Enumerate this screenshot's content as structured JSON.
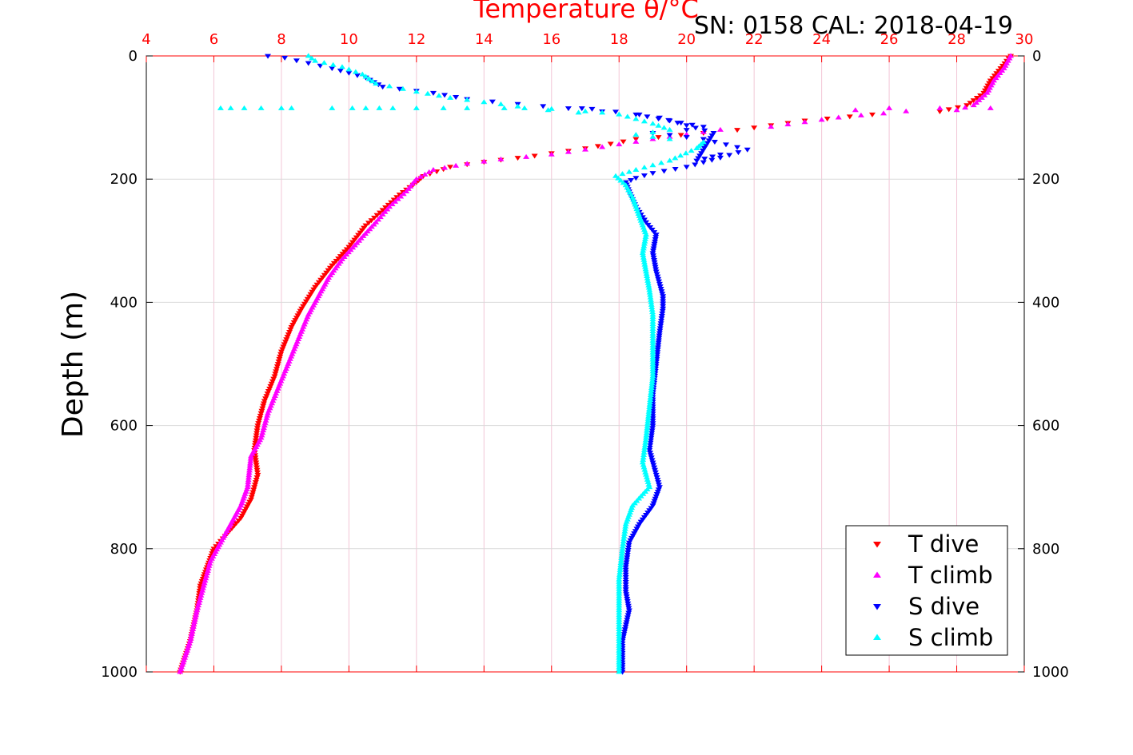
{
  "chart_data": {
    "type": "scatter",
    "title": "Temperature θ/°C",
    "annotation": "SN: 0158  CAL: 2018-04-19",
    "ylabel": "Depth (m)",
    "xlim": [
      4,
      30
    ],
    "ylim": [
      0,
      1000
    ],
    "y_reversed": true,
    "grid": true,
    "legend_position": "bottom-right",
    "x_ticks": [
      "4",
      "6",
      "8",
      "10",
      "12",
      "14",
      "16",
      "18",
      "20",
      "22",
      "24",
      "26",
      "28",
      "30"
    ],
    "y_ticks": [
      "0",
      "200",
      "400",
      "600",
      "800",
      "1000"
    ],
    "colors": {
      "temp_axis": "#ff0000",
      "grid_x": "#f2c6d6",
      "grid_y": "#d9d9d9",
      "T_dive": "#ff0000",
      "T_climb": "#ff00ff",
      "S_dive": "#0000ff",
      "S_climb": "#00ffff"
    },
    "series": [
      {
        "name": "T dive",
        "marker": "triangle-down",
        "color": "#ff0000",
        "points": [
          [
            29.6,
            0
          ],
          [
            29.3,
            20
          ],
          [
            29.0,
            40
          ],
          [
            28.8,
            60
          ],
          [
            28.3,
            80
          ],
          [
            27.5,
            90
          ],
          [
            25.5,
            95
          ],
          [
            23.5,
            105
          ],
          [
            21.5,
            120
          ],
          [
            20.5,
            125
          ],
          [
            18.5,
            135
          ],
          [
            17.0,
            150
          ],
          [
            15.5,
            162
          ],
          [
            14.0,
            172
          ],
          [
            13.0,
            180
          ],
          [
            12.2,
            195
          ],
          [
            12.0,
            205
          ],
          [
            11.5,
            225
          ],
          [
            11.0,
            250
          ],
          [
            10.5,
            275
          ],
          [
            10.0,
            310
          ],
          [
            9.5,
            340
          ],
          [
            9.0,
            375
          ],
          [
            8.6,
            410
          ],
          [
            8.3,
            440
          ],
          [
            8.0,
            480
          ],
          [
            7.8,
            520
          ],
          [
            7.5,
            560
          ],
          [
            7.3,
            600
          ],
          [
            7.2,
            640
          ],
          [
            7.3,
            680
          ],
          [
            7.1,
            720
          ],
          [
            6.8,
            750
          ],
          [
            6.4,
            775
          ],
          [
            6.0,
            800
          ],
          [
            5.8,
            830
          ],
          [
            5.6,
            860
          ],
          [
            5.5,
            900
          ],
          [
            5.3,
            950
          ],
          [
            5.0,
            1000
          ]
        ]
      },
      {
        "name": "T climb",
        "marker": "triangle-up",
        "color": "#ff00ff",
        "points": [
          [
            29.6,
            0
          ],
          [
            29.4,
            20
          ],
          [
            29.1,
            40
          ],
          [
            28.9,
            60
          ],
          [
            28.5,
            80
          ],
          [
            28.0,
            88
          ],
          [
            26.5,
            90
          ],
          [
            24.5,
            100
          ],
          [
            22.5,
            115
          ],
          [
            21.0,
            120
          ],
          [
            19.0,
            135
          ],
          [
            17.5,
            148
          ],
          [
            16.0,
            160
          ],
          [
            14.5,
            168
          ],
          [
            13.5,
            175
          ],
          [
            12.5,
            185
          ],
          [
            12.0,
            200
          ],
          [
            11.7,
            220
          ],
          [
            11.2,
            245
          ],
          [
            10.8,
            270
          ],
          [
            10.3,
            300
          ],
          [
            9.8,
            330
          ],
          [
            9.4,
            360
          ],
          [
            9.1,
            390
          ],
          [
            8.8,
            420
          ],
          [
            8.5,
            460
          ],
          [
            8.2,
            500
          ],
          [
            7.9,
            540
          ],
          [
            7.6,
            580
          ],
          [
            7.4,
            620
          ],
          [
            7.1,
            650
          ],
          [
            7.0,
            700
          ],
          [
            6.8,
            730
          ],
          [
            6.5,
            760
          ],
          [
            6.2,
            790
          ],
          [
            5.9,
            820
          ],
          [
            5.7,
            860
          ],
          [
            5.5,
            900
          ],
          [
            5.3,
            950
          ],
          [
            5.0,
            1000
          ],
          [
            29.0,
            85
          ],
          [
            27.5,
            85
          ],
          [
            26.0,
            85
          ],
          [
            25.0,
            88
          ]
        ]
      },
      {
        "name": "S dive",
        "marker": "triangle-down",
        "color": "#0000ff",
        "points": [
          [
            7.6,
            0
          ],
          [
            8.1,
            3
          ],
          [
            9.5,
            20
          ],
          [
            10.5,
            35
          ],
          [
            11.0,
            50
          ],
          [
            12.5,
            60
          ],
          [
            13.5,
            70
          ],
          [
            15.0,
            78
          ],
          [
            16.5,
            85
          ],
          [
            17.5,
            90
          ],
          [
            18.5,
            95
          ],
          [
            19.5,
            105
          ],
          [
            20.5,
            115
          ],
          [
            20.0,
            120
          ],
          [
            19.0,
            125
          ],
          [
            20.5,
            135
          ],
          [
            21.5,
            148
          ],
          [
            21.8,
            152
          ],
          [
            21.0,
            165
          ],
          [
            20.0,
            180
          ],
          [
            19.0,
            190
          ],
          [
            18.5,
            198
          ],
          [
            18.2,
            205
          ],
          [
            18.3,
            220
          ],
          [
            18.5,
            245
          ],
          [
            18.8,
            270
          ],
          [
            19.1,
            290
          ],
          [
            19.0,
            320
          ],
          [
            19.1,
            350
          ],
          [
            19.3,
            390
          ],
          [
            19.3,
            410
          ],
          [
            19.2,
            450
          ],
          [
            19.1,
            500
          ],
          [
            19.0,
            550
          ],
          [
            19.0,
            600
          ],
          [
            18.9,
            640
          ],
          [
            19.1,
            680
          ],
          [
            19.2,
            700
          ],
          [
            19.0,
            730
          ],
          [
            18.6,
            760
          ],
          [
            18.3,
            790
          ],
          [
            18.2,
            830
          ],
          [
            18.2,
            870
          ],
          [
            18.3,
            900
          ],
          [
            18.1,
            950
          ],
          [
            18.1,
            1000
          ],
          [
            16.9,
            85
          ],
          [
            17.2,
            86
          ],
          [
            18.6,
            95
          ],
          [
            19.2,
            100
          ],
          [
            20.8,
            125
          ],
          [
            20.3,
            170
          ],
          [
            21.0,
            160
          ]
        ]
      },
      {
        "name": "S climb",
        "marker": "triangle-up",
        "color": "#00ffff",
        "points": [
          [
            8.8,
            0
          ],
          [
            9.0,
            8
          ],
          [
            9.8,
            18
          ],
          [
            10.4,
            30
          ],
          [
            10.8,
            45
          ],
          [
            12.0,
            58
          ],
          [
            13.0,
            68
          ],
          [
            14.0,
            75
          ],
          [
            15.0,
            82
          ],
          [
            17.0,
            90
          ],
          [
            18.0,
            95
          ],
          [
            19.0,
            110
          ],
          [
            19.5,
            120
          ],
          [
            18.5,
            128
          ],
          [
            19.5,
            135
          ],
          [
            20.5,
            140
          ],
          [
            20.3,
            150
          ],
          [
            19.5,
            170
          ],
          [
            18.5,
            185
          ],
          [
            17.9,
            195
          ],
          [
            18.2,
            210
          ],
          [
            18.4,
            230
          ],
          [
            18.6,
            260
          ],
          [
            18.8,
            290
          ],
          [
            18.7,
            320
          ],
          [
            18.8,
            350
          ],
          [
            18.9,
            380
          ],
          [
            19.0,
            420
          ],
          [
            19.0,
            470
          ],
          [
            19.0,
            520
          ],
          [
            18.9,
            570
          ],
          [
            18.8,
            620
          ],
          [
            18.7,
            660
          ],
          [
            18.9,
            700
          ],
          [
            18.4,
            730
          ],
          [
            18.2,
            760
          ],
          [
            18.1,
            800
          ],
          [
            18.0,
            850
          ],
          [
            18.0,
            900
          ],
          [
            18.0,
            950
          ],
          [
            18.0,
            1000
          ],
          [
            6.2,
            85
          ],
          [
            6.5,
            85
          ],
          [
            6.9,
            85
          ],
          [
            7.4,
            85
          ],
          [
            8.0,
            85
          ],
          [
            8.3,
            85
          ],
          [
            9.5,
            85
          ],
          [
            10.1,
            85
          ],
          [
            10.5,
            85
          ],
          [
            10.9,
            85
          ],
          [
            11.3,
            85
          ],
          [
            12.0,
            85
          ],
          [
            12.8,
            85
          ],
          [
            13.5,
            85
          ],
          [
            14.6,
            85
          ],
          [
            15.2,
            85
          ],
          [
            15.9,
            88
          ],
          [
            16.8,
            92
          ],
          [
            17.5,
            92
          ]
        ]
      }
    ]
  }
}
